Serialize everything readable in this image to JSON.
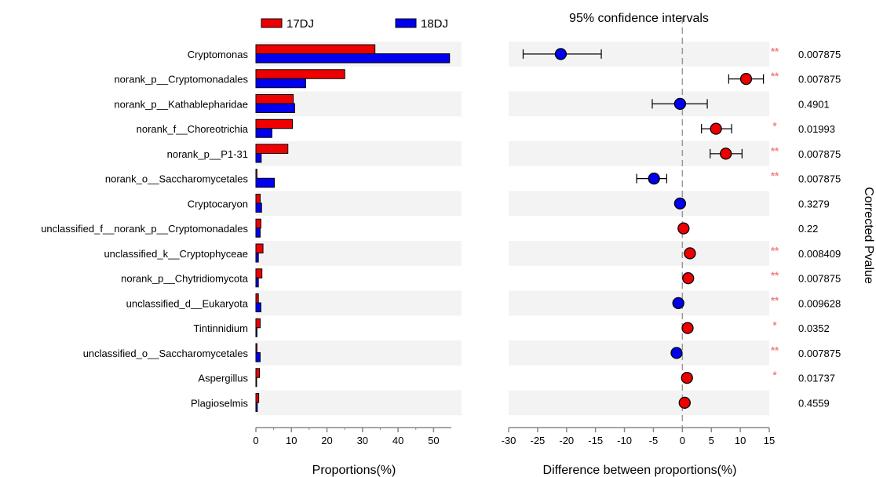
{
  "colors": {
    "group1": "#ee0000",
    "group2": "#0000ee",
    "band": "#f3f3f3",
    "zero_line": "#999999",
    "sig": "#f08080"
  },
  "chart_data": {
    "type": "bar",
    "legend": [
      "17DJ",
      "18DJ"
    ],
    "categories": [
      "Cryptomonas",
      "norank_p__Cryptomonadales",
      "norank_p__Kathablepharidae",
      "norank_f__Choreotrichia",
      "norank_p__P1-31",
      "norank_o__Saccharomycetales",
      "Cryptocaryon",
      "unclassified_f__norank_p__Cryptomonadales",
      "unclassified_k__Cryptophyceae",
      "norank_p__Chytridiomycota",
      "unclassified_d__Eukaryota",
      "Tintinnidium",
      "unclassified_o__Saccharomycetales",
      "Aspergillus",
      "Plagioselmis"
    ],
    "series": [
      {
        "name": "17DJ",
        "values": [
          33.5,
          25.0,
          10.5,
          10.3,
          9.0,
          0.3,
          1.2,
          1.4,
          2.0,
          1.7,
          0.7,
          1.2,
          0.3,
          1.0,
          0.8
        ]
      },
      {
        "name": "18DJ",
        "values": [
          54.5,
          14.0,
          10.9,
          4.5,
          1.5,
          5.2,
          1.6,
          1.2,
          0.7,
          0.7,
          1.4,
          0.3,
          1.2,
          0.2,
          0.4
        ]
      }
    ],
    "xlabel": "Proportions(%)",
    "xlim": [
      0,
      55
    ],
    "xticks": [
      0,
      10,
      20,
      30,
      40,
      50
    ],
    "ci": {
      "title": "95% confidence intervals",
      "xlabel": "Difference between proportions(%)",
      "xlim": [
        -30,
        15
      ],
      "xticks": [
        -30,
        -25,
        -20,
        -15,
        -10,
        -5,
        0,
        5,
        10,
        15
      ],
      "diff": [
        -21.0,
        11.0,
        -0.4,
        5.8,
        7.5,
        -4.9,
        -0.4,
        0.2,
        1.3,
        1.0,
        -0.7,
        0.9,
        -1.0,
        0.8,
        0.4
      ],
      "lower": [
        -27.5,
        8.0,
        -5.2,
        3.3,
        4.8,
        -7.9,
        -0.8,
        -0.1,
        0.8,
        0.6,
        -1.1,
        0.5,
        -1.4,
        0.4,
        0.1
      ],
      "upper": [
        -14.0,
        14.0,
        4.3,
        8.5,
        10.3,
        -2.7,
        0.0,
        0.5,
        1.8,
        1.4,
        -0.3,
        1.3,
        -0.6,
        1.2,
        0.7
      ]
    },
    "pvalues": [
      "0.007875",
      "0.007875",
      "0.4901",
      "0.01993",
      "0.007875",
      "0.007875",
      "0.3279",
      "0.22",
      "0.008409",
      "0.007875",
      "0.009628",
      "0.0352",
      "0.007875",
      "0.01737",
      "0.4559"
    ],
    "significance": [
      "**",
      "**",
      "",
      "*",
      "**",
      "**",
      "",
      "",
      "**",
      "**",
      "**",
      "*",
      "**",
      "*",
      ""
    ],
    "pvalue_label": "Corrected Pvalue",
    "grid": false,
    "legend_position": "top"
  }
}
